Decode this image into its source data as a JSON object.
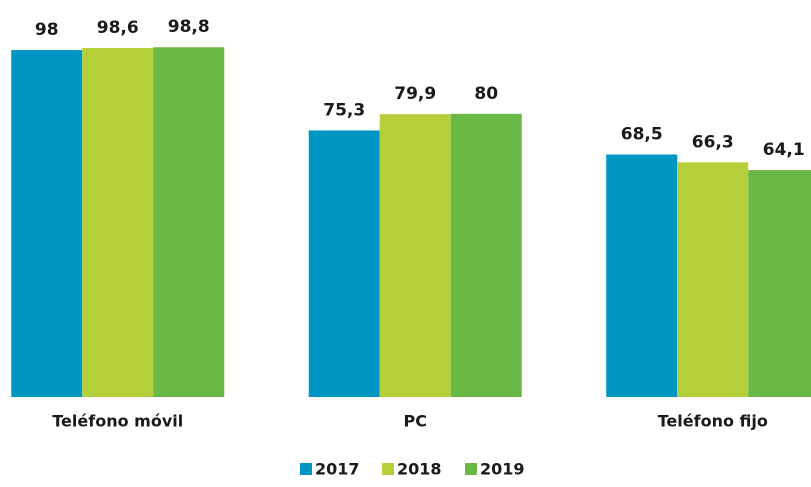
{
  "chart_data": {
    "type": "bar",
    "categories": [
      "Teléfono móvil",
      "PC",
      "Teléfono fijo"
    ],
    "series": [
      {
        "name": "2017",
        "color": "#0096c3",
        "values": [
          98,
          75.3,
          68.5
        ],
        "value_labels": [
          "98",
          "75,3",
          "68,5"
        ]
      },
      {
        "name": "2018",
        "color": "#b5cf3a",
        "values": [
          98.6,
          79.9,
          66.3
        ],
        "value_labels": [
          "98,6",
          "79,9",
          "66,3"
        ]
      },
      {
        "name": "2019",
        "color": "#6ab845",
        "values": [
          98.8,
          80,
          64.1
        ],
        "value_labels": [
          "98,8",
          "80",
          "64,1"
        ]
      }
    ],
    "ylim": [
      0,
      100
    ],
    "legend": "bottom"
  }
}
